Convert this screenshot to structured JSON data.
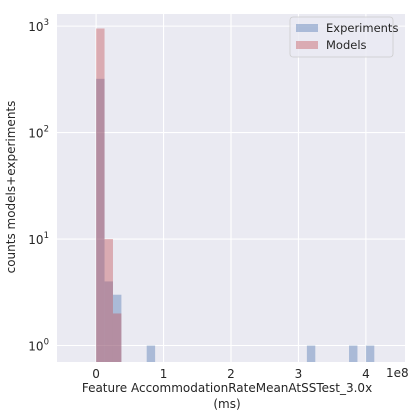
{
  "chart_data": {
    "type": "bar",
    "xlabel_line1": "Feature AccommodationRateMeanAtSSTest_3.0x",
    "xlabel_line2": "(ms)",
    "ylabel": "counts models+experiments",
    "x_offset_label": "1e8",
    "xlim": [
      -0.58,
      4.58
    ],
    "xlim_unit": "1e8",
    "ylim": [
      0.7,
      1300
    ],
    "yscale": "log",
    "grid": true,
    "legend_position": "top-right",
    "x_ticks": [
      {
        "value": 0,
        "label": "0"
      },
      {
        "value": 1,
        "label": "1"
      },
      {
        "value": 2,
        "label": "2"
      },
      {
        "value": 3,
        "label": "3"
      },
      {
        "value": 4,
        "label": "4"
      }
    ],
    "y_ticks": [
      {
        "value": 1,
        "base": "10",
        "exp": "0"
      },
      {
        "value": 10,
        "base": "10",
        "exp": "1"
      },
      {
        "value": 100,
        "base": "10",
        "exp": "2"
      },
      {
        "value": 1000,
        "base": "10",
        "exp": "3"
      }
    ],
    "bin_width": 0.125,
    "series": [
      {
        "name": "Experiments",
        "color": "#4c72b0",
        "bins": [
          {
            "x0": 0.0,
            "count": 320
          },
          {
            "x0": 0.125,
            "count": 4
          },
          {
            "x0": 0.25,
            "count": 3
          },
          {
            "x0": 0.75,
            "count": 1
          },
          {
            "x0": 3.125,
            "count": 1
          },
          {
            "x0": 3.75,
            "count": 1
          },
          {
            "x0": 4.0,
            "count": 1
          }
        ]
      },
      {
        "name": "Models",
        "color": "#c44e52",
        "bins": [
          {
            "x0": 0.0,
            "count": 950
          },
          {
            "x0": 0.125,
            "count": 10
          },
          {
            "x0": 0.25,
            "count": 2
          }
        ]
      }
    ]
  }
}
